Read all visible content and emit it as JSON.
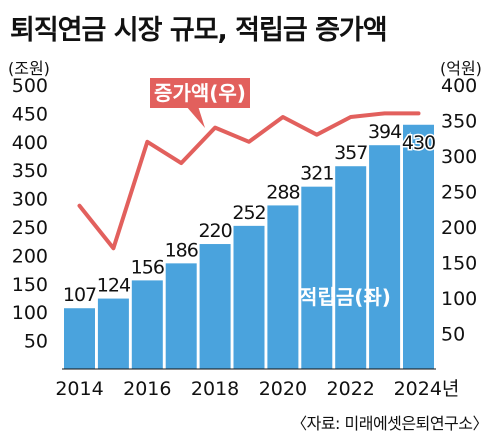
{
  "title": "퇴직연금 시장 규모, 적립금 증가액",
  "source": "〈자료: 미래에셋은퇴연구소〉",
  "chart_data": {
    "type": "bar+line",
    "categories": [
      "2014",
      "2015",
      "2016",
      "2017",
      "2018",
      "2019",
      "2020",
      "2021",
      "2022",
      "2023",
      "2024"
    ],
    "x_tick_labels": [
      "2014",
      "2016",
      "2018",
      "2020",
      "2022",
      "2024년"
    ],
    "bar_series": {
      "name": "적립금(좌)",
      "unit": "(조원)",
      "axis": "left",
      "values": [
        107,
        124,
        156,
        186,
        220,
        252,
        288,
        321,
        357,
        394,
        430
      ],
      "color": "#4aa3dd"
    },
    "line_series": {
      "name": "증가액(우)",
      "unit": "(억원)",
      "axis": "right",
      "values": [
        230,
        170,
        320,
        290,
        340,
        320,
        355,
        330,
        355,
        360,
        360
      ],
      "color": "#e2605d"
    },
    "ylim_left": [
      0,
      500
    ],
    "yticks_left": [
      50,
      100,
      150,
      200,
      250,
      300,
      350,
      400,
      450,
      500
    ],
    "ylim_right": [
      0,
      400
    ],
    "yticks_right": [
      50,
      100,
      150,
      200,
      250,
      300,
      350,
      400
    ],
    "grid": false,
    "legend": "inline labels"
  }
}
